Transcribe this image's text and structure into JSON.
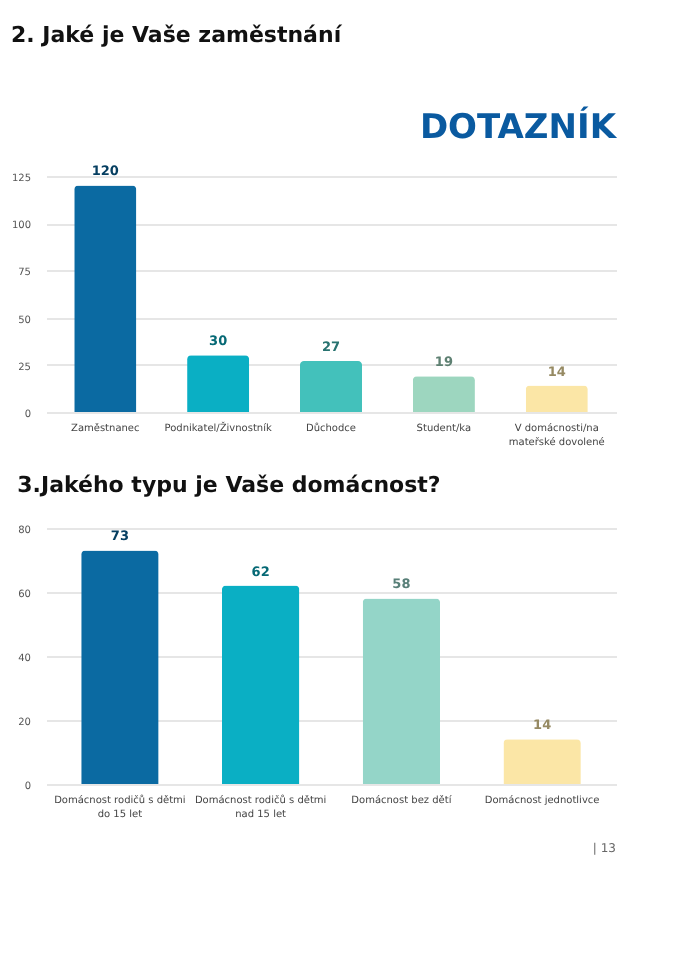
{
  "chart_data": [
    {
      "type": "bar",
      "title": "2. Jaké je Vaše zaměstnání",
      "annotations": [
        "DOTAZNÍK"
      ],
      "categories": [
        "Zaměstnanec",
        "Podnikatel/Živnostník",
        "Důchodce",
        "Student/ka",
        "V domácnosti/na mateřské dovolené"
      ],
      "values": [
        120,
        30,
        27,
        19,
        14
      ],
      "colors": [
        "#0b6aa2",
        "#0aafc4",
        "#43c1bb",
        "#9dd6bf",
        "#fbe6a6"
      ],
      "ylim": [
        0,
        125
      ],
      "yticks": [
        0,
        25,
        50,
        75,
        100,
        125
      ],
      "grid": "y",
      "data_labels": true,
      "legend": false
    },
    {
      "type": "bar",
      "title": "3.Jakého typu je Vaše domácnost?",
      "annotations": [
        "| 13"
      ],
      "categories": [
        "Domácnost rodičů s dětmi do 15 let",
        "Domácnost rodičů s dětmi nad 15 let",
        "Domácnost bez dětí",
        "Domácnost jednotlivce"
      ],
      "values": [
        73,
        62,
        58,
        14
      ],
      "colors": [
        "#0b6aa2",
        "#0aafc4",
        "#94d5c8",
        "#fbe6a6"
      ],
      "ylim": [
        0,
        80
      ],
      "yticks": [
        0,
        20,
        40,
        60,
        80
      ],
      "grid": "y",
      "data_labels": true,
      "legend": false
    }
  ]
}
